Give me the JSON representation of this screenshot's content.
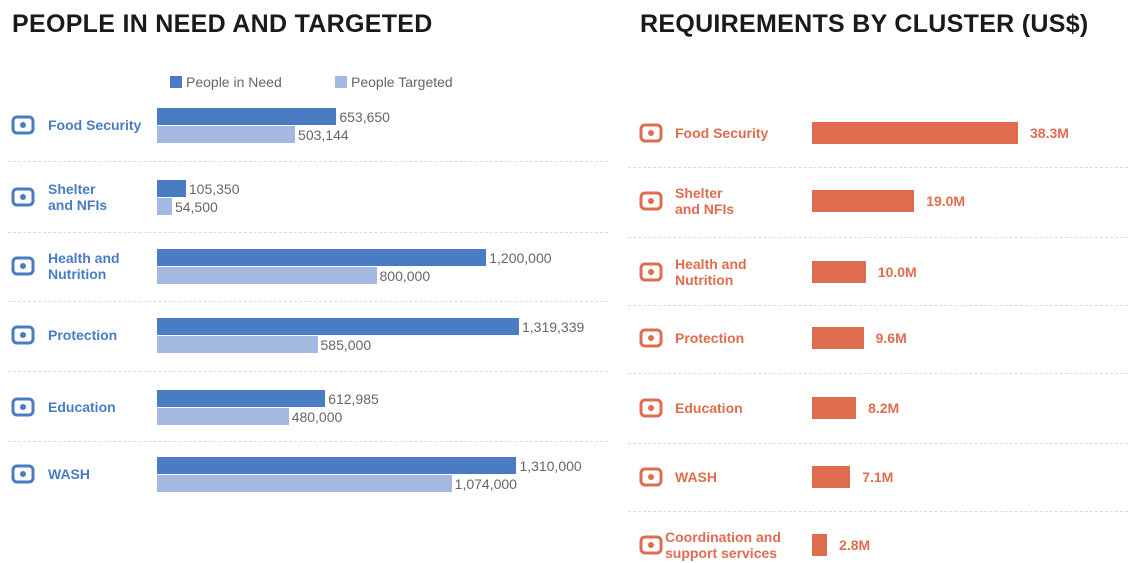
{
  "chart_data": [
    {
      "type": "bar",
      "orientation": "horizontal",
      "title": "PEOPLE IN NEED AND TARGETED",
      "categories": [
        "Food Security",
        "Shelter and NFIs",
        "Health and Nutrition",
        "Protection",
        "Education",
        "WASH"
      ],
      "series": [
        {
          "name": "People in Need",
          "color": "#4a7cc4",
          "values": [
            653650,
            105350,
            1200000,
            1319339,
            612985,
            1310000
          ],
          "value_labels": [
            "653,650",
            "105,350",
            "1,200,000",
            "1,319,339",
            "612,985",
            "1,310,000"
          ]
        },
        {
          "name": "People Targeted",
          "color": "#a3b9e0",
          "values": [
            503144,
            54500,
            800000,
            585000,
            480000,
            1074000
          ],
          "value_labels": [
            "503,144",
            "54,500",
            "800,000",
            "585,000",
            "480,000",
            "1,074,000"
          ]
        }
      ],
      "label_color": "#4a7cc4"
    },
    {
      "type": "bar",
      "orientation": "horizontal",
      "title": "REQUIREMENTS BY CLUSTER (US$)",
      "categories": [
        "Food Security",
        "Shelter and NFIs",
        "Health and Nutrition",
        "Protection",
        "Education",
        "WASH",
        "Coordination and support services"
      ],
      "values": [
        38.3,
        19.0,
        10.0,
        9.6,
        8.2,
        7.1,
        2.8
      ],
      "value_labels": [
        "38.3M",
        "19.0M",
        "10.0M",
        "9.6M",
        "8.2M",
        "7.1M",
        "2.8M"
      ],
      "color": "#e06c50",
      "label_color": "#e06c50"
    }
  ]
}
